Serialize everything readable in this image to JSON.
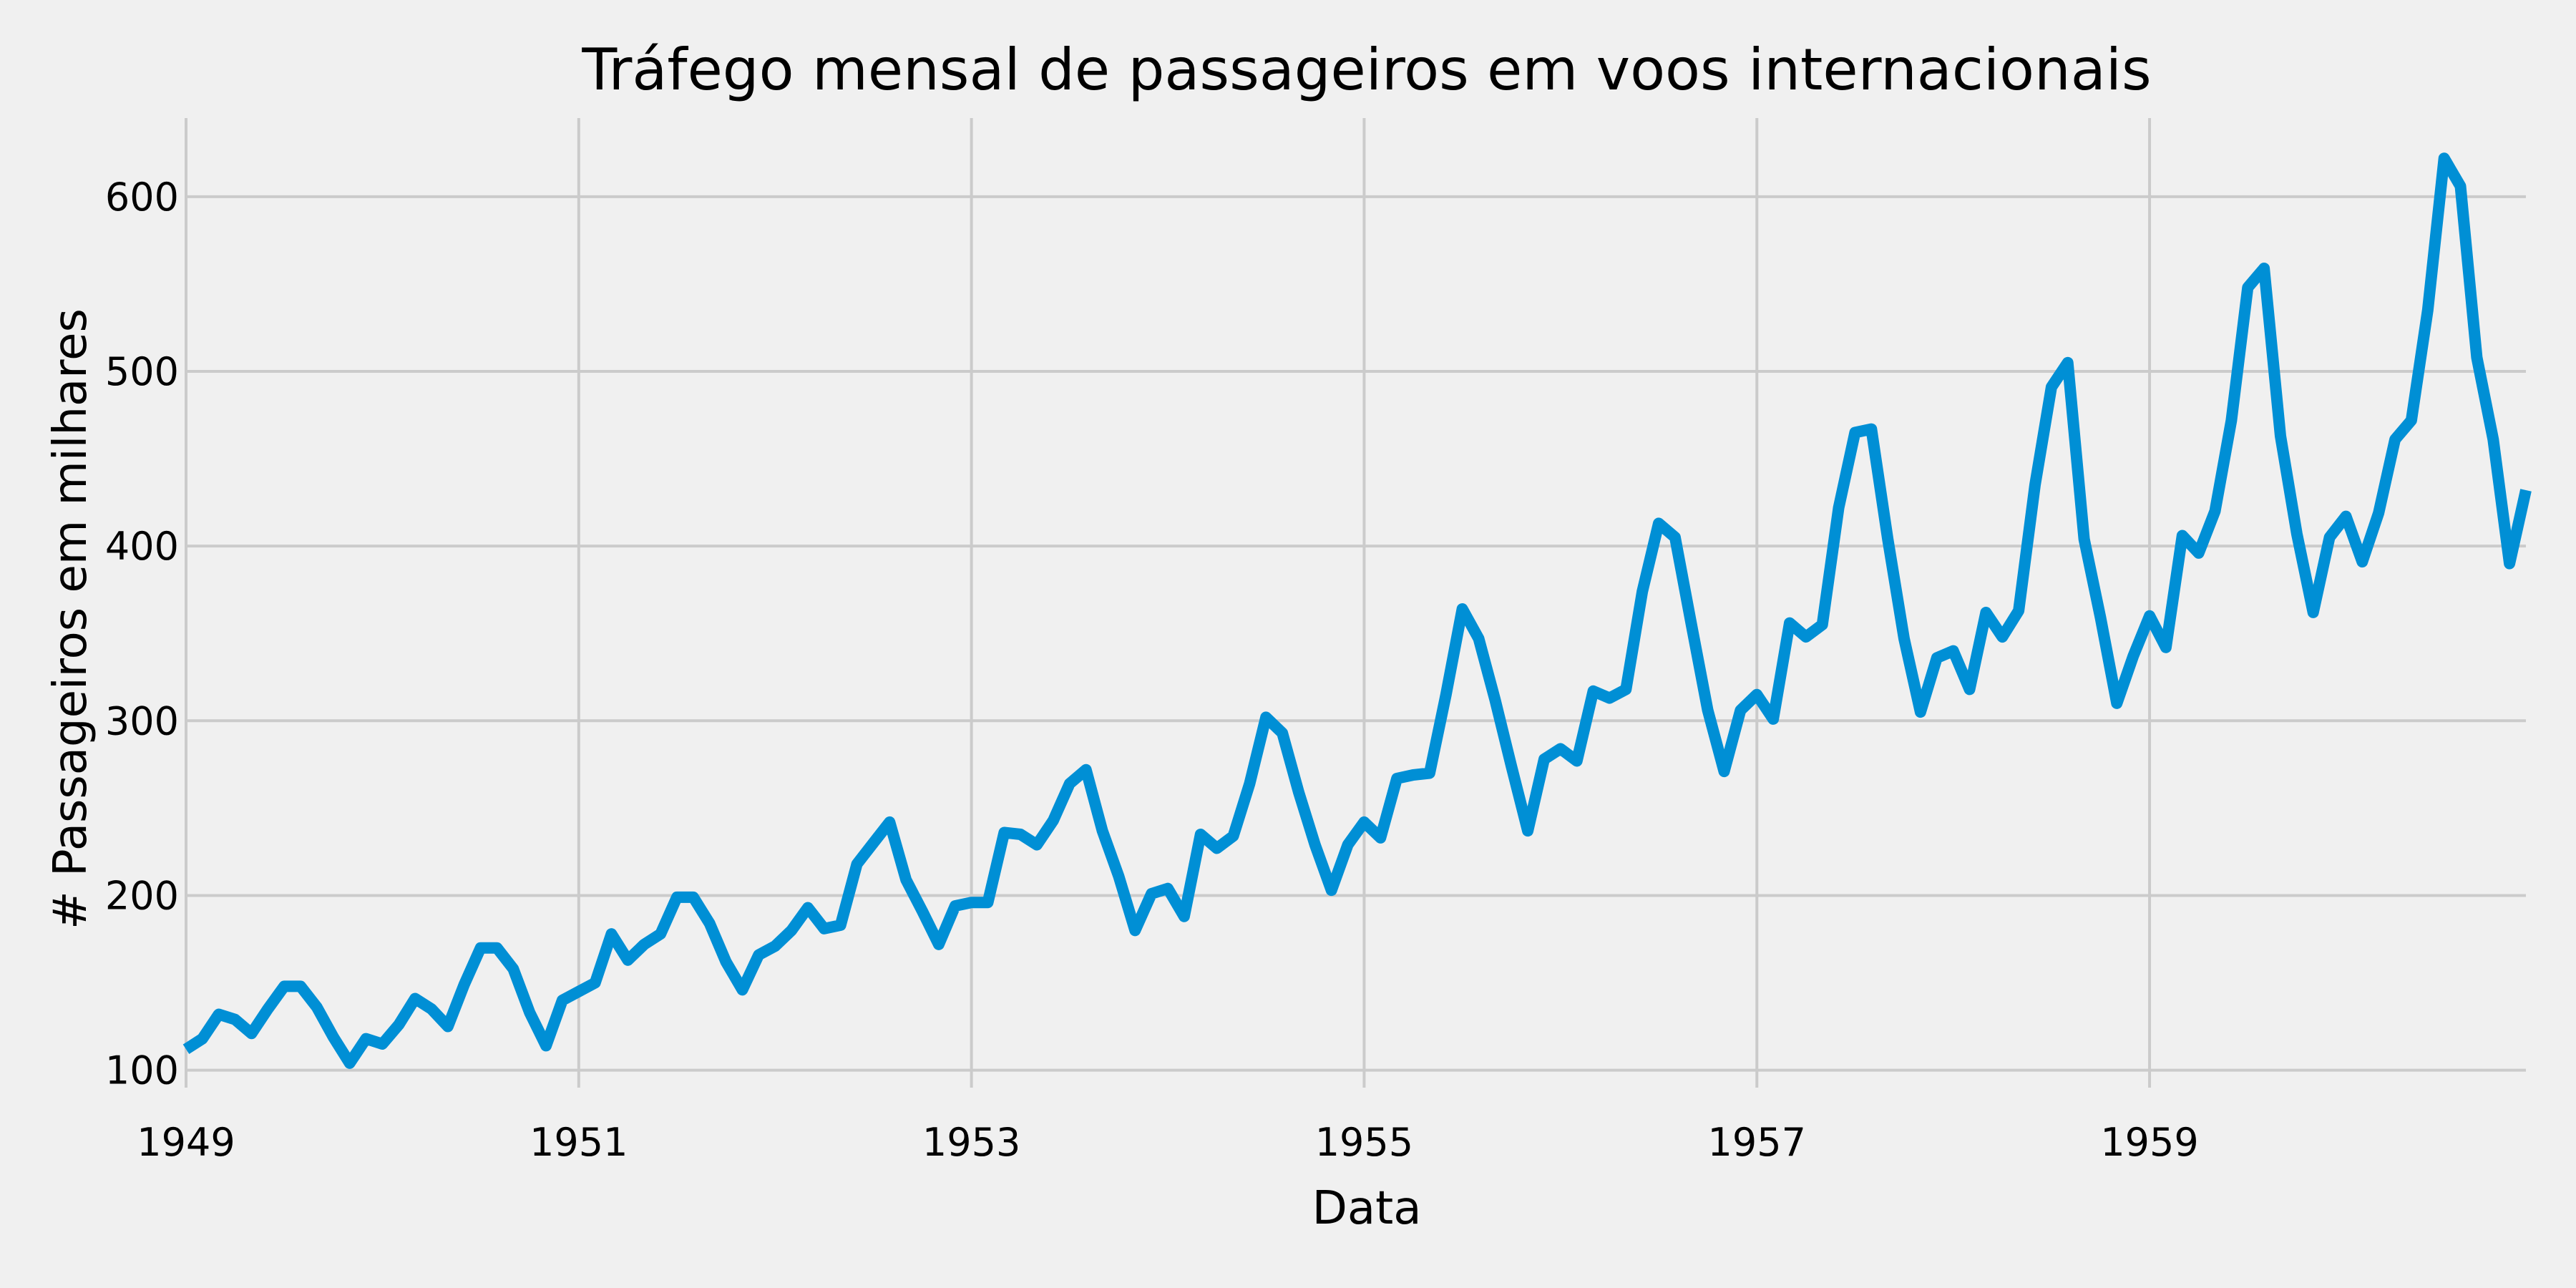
{
  "chart_data": {
    "type": "line",
    "title": "Tráfego mensal de passageiros em voos internacionais",
    "xlabel": "Data",
    "ylabel": "# Passageiros em milhares",
    "x_tick_labels": [
      "1949",
      "1951",
      "1953",
      "1955",
      "1957",
      "1959"
    ],
    "y_tick_labels": [
      "100",
      "200",
      "300",
      "400",
      "500",
      "600"
    ],
    "xlim": [
      "1949-01",
      "1960-12"
    ],
    "ylim": [
      90,
      645
    ],
    "grid": true,
    "colors": {
      "background": "#f0f0f0",
      "line": "#008fd5",
      "grid": "#cbcbcb"
    },
    "series": [
      {
        "x": [
          "1949-01",
          "1949-02",
          "1949-03",
          "1949-04",
          "1949-05",
          "1949-06",
          "1949-07",
          "1949-08",
          "1949-09",
          "1949-10",
          "1949-11",
          "1949-12",
          "1950-01",
          "1950-02",
          "1950-03",
          "1950-04",
          "1950-05",
          "1950-06",
          "1950-07",
          "1950-08",
          "1950-09",
          "1950-10",
          "1950-11",
          "1950-12",
          "1951-01",
          "1951-02",
          "1951-03",
          "1951-04",
          "1951-05",
          "1951-06",
          "1951-07",
          "1951-08",
          "1951-09",
          "1951-10",
          "1951-11",
          "1951-12",
          "1952-01",
          "1952-02",
          "1952-03",
          "1952-04",
          "1952-05",
          "1952-06",
          "1952-07",
          "1952-08",
          "1952-09",
          "1952-10",
          "1952-11",
          "1952-12",
          "1953-01",
          "1953-02",
          "1953-03",
          "1953-04",
          "1953-05",
          "1953-06",
          "1953-07",
          "1953-08",
          "1953-09",
          "1953-10",
          "1953-11",
          "1953-12",
          "1954-01",
          "1954-02",
          "1954-03",
          "1954-04",
          "1954-05",
          "1954-06",
          "1954-07",
          "1954-08",
          "1954-09",
          "1954-10",
          "1954-11",
          "1954-12",
          "1955-01",
          "1955-02",
          "1955-03",
          "1955-04",
          "1955-05",
          "1955-06",
          "1955-07",
          "1955-08",
          "1955-09",
          "1955-10",
          "1955-11",
          "1955-12",
          "1956-01",
          "1956-02",
          "1956-03",
          "1956-04",
          "1956-05",
          "1956-06",
          "1956-07",
          "1956-08",
          "1956-09",
          "1956-10",
          "1956-11",
          "1956-12",
          "1957-01",
          "1957-02",
          "1957-03",
          "1957-04",
          "1957-05",
          "1957-06",
          "1957-07",
          "1957-08",
          "1957-09",
          "1957-10",
          "1957-11",
          "1957-12",
          "1958-01",
          "1958-02",
          "1958-03",
          "1958-04",
          "1958-05",
          "1958-06",
          "1958-07",
          "1958-08",
          "1958-09",
          "1958-10",
          "1958-11",
          "1958-12",
          "1959-01",
          "1959-02",
          "1959-03",
          "1959-04",
          "1959-05",
          "1959-06",
          "1959-07",
          "1959-08",
          "1959-09",
          "1959-10",
          "1959-11",
          "1959-12",
          "1960-01",
          "1960-02",
          "1960-03",
          "1960-04",
          "1960-05",
          "1960-06",
          "1960-07",
          "1960-08",
          "1960-09",
          "1960-10",
          "1960-11",
          "1960-12"
        ],
        "values": [
          112,
          118,
          132,
          129,
          121,
          135,
          148,
          148,
          136,
          119,
          104,
          118,
          115,
          126,
          141,
          135,
          125,
          149,
          170,
          170,
          158,
          133,
          114,
          140,
          145,
          150,
          178,
          163,
          172,
          178,
          199,
          199,
          184,
          162,
          146,
          166,
          171,
          180,
          193,
          181,
          183,
          218,
          230,
          242,
          209,
          191,
          172,
          194,
          196,
          196,
          236,
          235,
          229,
          243,
          264,
          272,
          237,
          211,
          180,
          201,
          204,
          188,
          235,
          227,
          234,
          264,
          302,
          293,
          259,
          229,
          203,
          229,
          242,
          233,
          267,
          269,
          270,
          315,
          364,
          347,
          312,
          274,
          237,
          278,
          284,
          277,
          317,
          313,
          318,
          374,
          413,
          405,
          355,
          306,
          271,
          306,
          315,
          301,
          356,
          348,
          355,
          422,
          465,
          467,
          404,
          347,
          305,
          336,
          340,
          318,
          362,
          348,
          363,
          435,
          491,
          505,
          404,
          359,
          310,
          337,
          360,
          342,
          406,
          396,
          420,
          472,
          548,
          559,
          463,
          407,
          362,
          405,
          417,
          391,
          419,
          461,
          472,
          535,
          622,
          606,
          508,
          461,
          390,
          432
        ]
      }
    ]
  }
}
